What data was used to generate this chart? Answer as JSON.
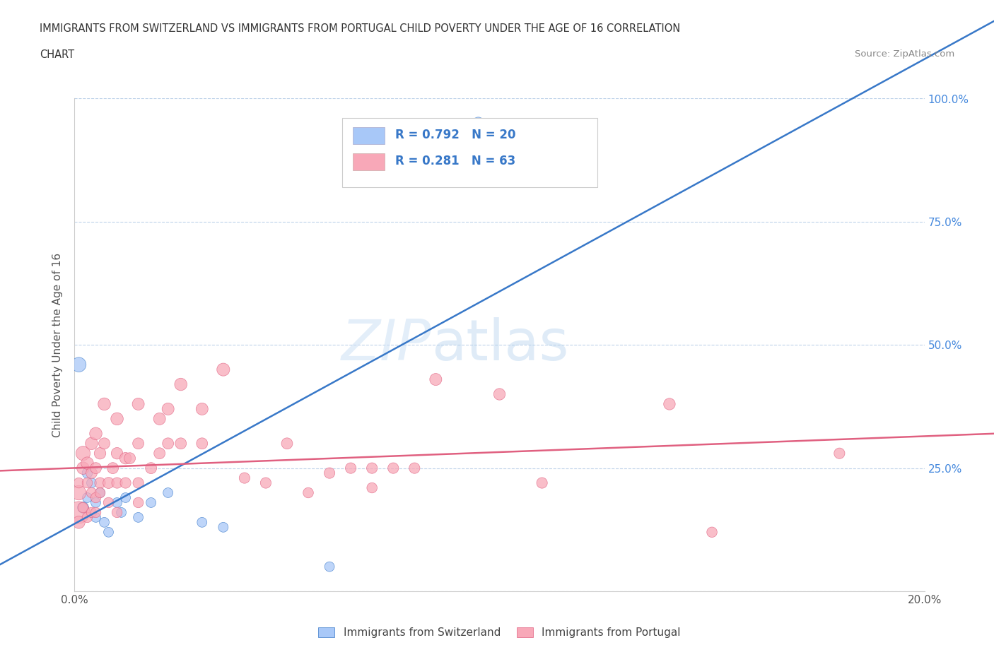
{
  "title_line1": "IMMIGRANTS FROM SWITZERLAND VS IMMIGRANTS FROM PORTUGAL CHILD POVERTY UNDER THE AGE OF 16 CORRELATION",
  "title_line2": "CHART",
  "source": "Source: ZipAtlas.com",
  "ylabel": "Child Poverty Under the Age of 16",
  "legend_label1": "Immigrants from Switzerland",
  "legend_label2": "Immigrants from Portugal",
  "r1": 0.792,
  "n1": 20,
  "r2": 0.281,
  "n2": 63,
  "xlim": [
    0.0,
    0.2
  ],
  "ylim": [
    0.0,
    1.0
  ],
  "color_swiss": "#a8c8f8",
  "color_portugal": "#f8a8b8",
  "trendline_swiss": "#3878c8",
  "trendline_portugal": "#e06080",
  "background_color": "#ffffff",
  "watermark_zip": "ZIP",
  "watermark_atlas": "atlas",
  "swiss_points": [
    [
      0.001,
      0.46
    ],
    [
      0.002,
      0.17
    ],
    [
      0.003,
      0.24
    ],
    [
      0.003,
      0.19
    ],
    [
      0.004,
      0.22
    ],
    [
      0.005,
      0.18
    ],
    [
      0.005,
      0.15
    ],
    [
      0.006,
      0.2
    ],
    [
      0.007,
      0.14
    ],
    [
      0.008,
      0.12
    ],
    [
      0.01,
      0.18
    ],
    [
      0.011,
      0.16
    ],
    [
      0.012,
      0.19
    ],
    [
      0.015,
      0.15
    ],
    [
      0.018,
      0.18
    ],
    [
      0.022,
      0.2
    ],
    [
      0.03,
      0.14
    ],
    [
      0.035,
      0.13
    ],
    [
      0.06,
      0.05
    ],
    [
      0.095,
      0.95
    ]
  ],
  "portugal_points": [
    [
      0.001,
      0.16
    ],
    [
      0.001,
      0.2
    ],
    [
      0.001,
      0.14
    ],
    [
      0.001,
      0.22
    ],
    [
      0.002,
      0.28
    ],
    [
      0.002,
      0.25
    ],
    [
      0.002,
      0.17
    ],
    [
      0.003,
      0.26
    ],
    [
      0.003,
      0.22
    ],
    [
      0.003,
      0.15
    ],
    [
      0.004,
      0.3
    ],
    [
      0.004,
      0.24
    ],
    [
      0.004,
      0.2
    ],
    [
      0.004,
      0.16
    ],
    [
      0.005,
      0.32
    ],
    [
      0.005,
      0.25
    ],
    [
      0.005,
      0.19
    ],
    [
      0.005,
      0.16
    ],
    [
      0.006,
      0.28
    ],
    [
      0.006,
      0.22
    ],
    [
      0.006,
      0.2
    ],
    [
      0.007,
      0.38
    ],
    [
      0.007,
      0.3
    ],
    [
      0.008,
      0.22
    ],
    [
      0.008,
      0.18
    ],
    [
      0.009,
      0.25
    ],
    [
      0.01,
      0.35
    ],
    [
      0.01,
      0.28
    ],
    [
      0.01,
      0.22
    ],
    [
      0.01,
      0.16
    ],
    [
      0.012,
      0.27
    ],
    [
      0.012,
      0.22
    ],
    [
      0.013,
      0.27
    ],
    [
      0.015,
      0.38
    ],
    [
      0.015,
      0.3
    ],
    [
      0.015,
      0.22
    ],
    [
      0.015,
      0.18
    ],
    [
      0.018,
      0.25
    ],
    [
      0.02,
      0.35
    ],
    [
      0.02,
      0.28
    ],
    [
      0.022,
      0.37
    ],
    [
      0.022,
      0.3
    ],
    [
      0.025,
      0.42
    ],
    [
      0.025,
      0.3
    ],
    [
      0.03,
      0.37
    ],
    [
      0.03,
      0.3
    ],
    [
      0.035,
      0.45
    ],
    [
      0.04,
      0.23
    ],
    [
      0.045,
      0.22
    ],
    [
      0.05,
      0.3
    ],
    [
      0.055,
      0.2
    ],
    [
      0.06,
      0.24
    ],
    [
      0.065,
      0.25
    ],
    [
      0.07,
      0.25
    ],
    [
      0.07,
      0.21
    ],
    [
      0.075,
      0.25
    ],
    [
      0.08,
      0.25
    ],
    [
      0.085,
      0.43
    ],
    [
      0.1,
      0.4
    ],
    [
      0.11,
      0.22
    ],
    [
      0.14,
      0.38
    ],
    [
      0.15,
      0.12
    ],
    [
      0.18,
      0.28
    ]
  ],
  "swiss_sizes": [
    220,
    130,
    110,
    100,
    100,
    100,
    100,
    100,
    100,
    100,
    100,
    100,
    100,
    100,
    100,
    100,
    100,
    100,
    100,
    150
  ],
  "portugal_sizes": [
    500,
    220,
    160,
    110,
    210,
    160,
    110,
    160,
    110,
    110,
    160,
    130,
    110,
    110,
    160,
    130,
    110,
    110,
    140,
    120,
    110,
    160,
    130,
    130,
    110,
    130,
    160,
    140,
    120,
    110,
    140,
    120,
    130,
    150,
    130,
    120,
    110,
    130,
    150,
    130,
    150,
    130,
    160,
    130,
    150,
    130,
    170,
    120,
    120,
    130,
    110,
    120,
    120,
    120,
    110,
    120,
    120,
    150,
    140,
    120,
    140,
    110,
    120
  ]
}
